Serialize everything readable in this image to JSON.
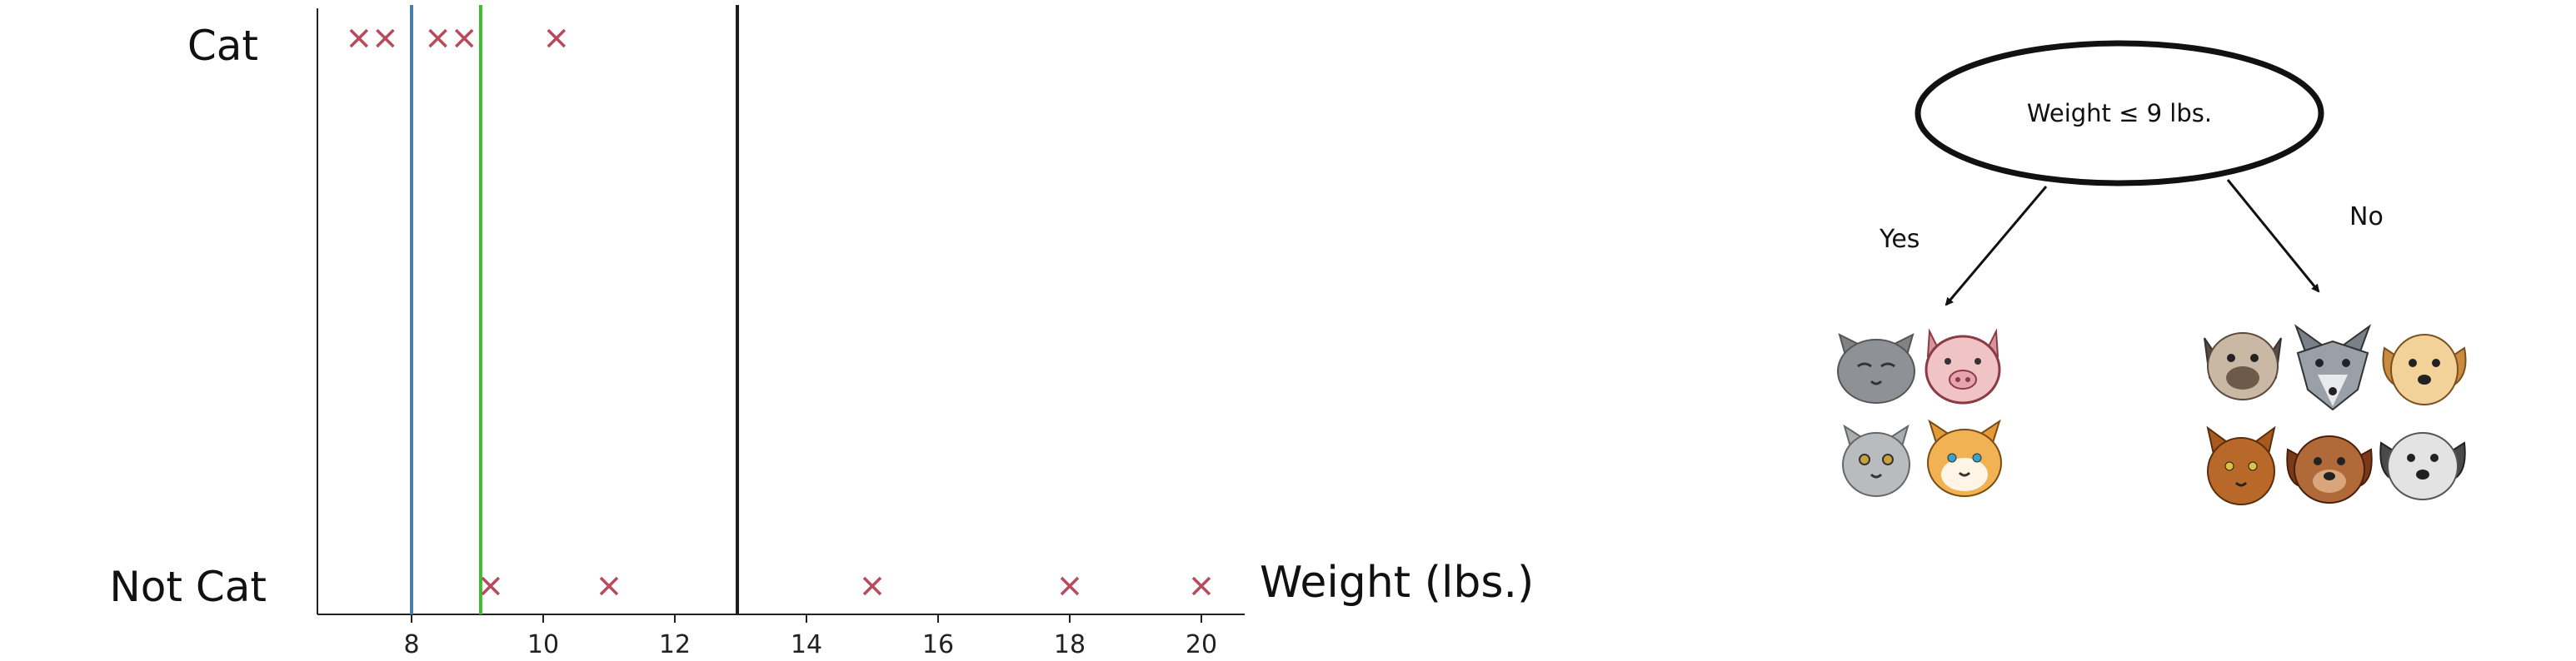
{
  "chart_data": {
    "type": "scatter",
    "title": "",
    "xlabel": "Weight (lbs.)",
    "ylabel": "",
    "xlim": [
      6.5,
      21.5
    ],
    "xticks": [
      8,
      10,
      12,
      14,
      16,
      18,
      20
    ],
    "categories": [
      "Cat",
      "Not Cat"
    ],
    "series": [
      {
        "category": "Cat",
        "x": [
          7.2,
          7.6,
          8.4,
          8.8,
          10.2
        ]
      },
      {
        "category": "Not Cat",
        "x": [
          9.2,
          11,
          15,
          18,
          20
        ]
      }
    ],
    "vlines": [
      {
        "x": 8,
        "color": "#4a7fad"
      },
      {
        "x": 9.05,
        "color": "#3cbf2a"
      },
      {
        "x": 12.95,
        "color": "#1a1a1a"
      }
    ],
    "marker_color": "#b84a5c",
    "grid": false
  },
  "decision_tree": {
    "root": "Weight ≤ 9 lbs.",
    "yes_label": "Yes",
    "no_label": "No",
    "yes_icons": [
      "cat-gray-icon",
      "pig-icon",
      "cat-gray-small-icon",
      "cat-orange-icon"
    ],
    "no_icons": [
      "dog-pug-icon",
      "wolf-icon",
      "dog-tan-icon",
      "cat-brown-icon",
      "dog-brown-icon",
      "dog-white-icon"
    ]
  }
}
